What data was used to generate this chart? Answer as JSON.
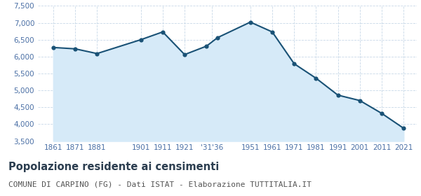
{
  "years": [
    1861,
    1871,
    1881,
    1901,
    1911,
    1921,
    1931,
    1936,
    1951,
    1961,
    1971,
    1981,
    1991,
    2001,
    2011,
    2021
  ],
  "population": [
    6270,
    6230,
    6090,
    6500,
    6730,
    6060,
    6310,
    6560,
    7020,
    6730,
    5790,
    5360,
    4860,
    4700,
    4320,
    3880
  ],
  "ylim": [
    3500,
    7500
  ],
  "yticks": [
    3500,
    4000,
    4500,
    5000,
    5500,
    6000,
    6500,
    7000,
    7500
  ],
  "ytick_labels": [
    "3,500",
    "4,000",
    "4,500",
    "5,000",
    "5,500",
    "6,000",
    "6,500",
    "7,000",
    "7,500"
  ],
  "x_positions": [
    1861,
    1871,
    1881,
    1901,
    1911,
    1921,
    1933.5,
    1951,
    1961,
    1971,
    1981,
    1991,
    2001,
    2011,
    2021
  ],
  "x_labels_display": [
    "1861",
    "1871",
    "1881",
    "1901",
    "1911",
    "1921",
    "'31'36",
    "1951",
    "1961",
    "1971",
    "1981",
    "1991",
    "2001",
    "2011",
    "2021"
  ],
  "xlim": [
    1854,
    2027
  ],
  "line_color": "#1a5276",
  "fill_color": "#d6eaf8",
  "marker_color": "#1a5276",
  "bg_color": "#ffffff",
  "grid_color": "#c8d8e8",
  "title": "Popolazione residente ai censimenti",
  "subtitle": "COMUNE DI CARPINO (FG) - Dati ISTAT - Elaborazione TUTTITALIA.IT",
  "title_fontsize": 10.5,
  "subtitle_fontsize": 8,
  "tick_fontsize": 7.5,
  "tick_color": "#4a6fa5"
}
